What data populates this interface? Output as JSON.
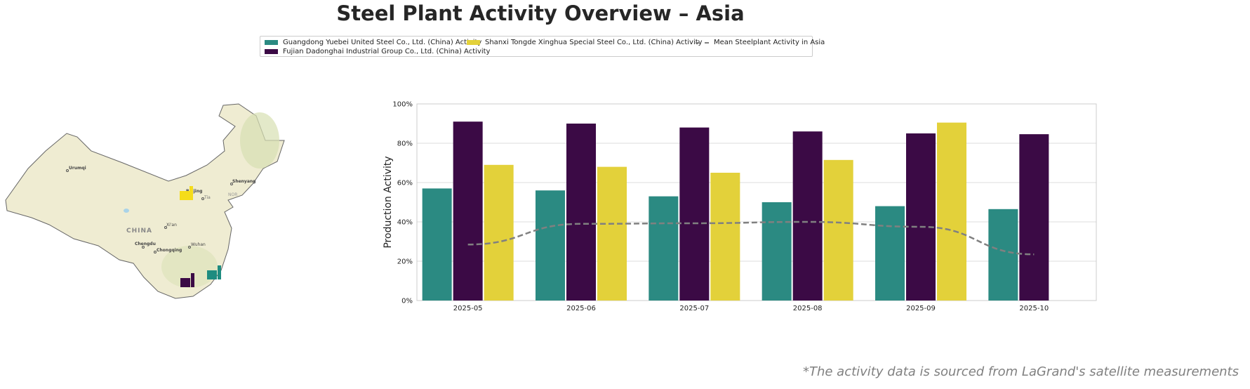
{
  "title": "Steel Plant Activity Overview – Asia",
  "footnote": "*The activity data is sourced from LaGrand's satellite measurements",
  "map": {
    "country_label": "CHINA",
    "cities": [
      "Urumqi",
      "Beijing",
      "Shenyang",
      "Xi'an",
      "Chengdu",
      "Chongqing",
      "Wuhan"
    ],
    "partial_labels": [
      "Tia",
      "NOR"
    ]
  },
  "colors": {
    "guangdong": "#2b8a82",
    "fujian": "#3b0a45",
    "shanxi": "#e3d13a",
    "mean": "#808080"
  },
  "chart_data": {
    "type": "bar",
    "ylabel": "Production Activity",
    "xlabel": "",
    "ylim": [
      0,
      100
    ],
    "yticks": [
      "0%",
      "20%",
      "40%",
      "60%",
      "80%",
      "100%"
    ],
    "grid": true,
    "legend_placement": "top-center",
    "categories": [
      "2025-05",
      "2025-06",
      "2025-07",
      "2025-08",
      "2025-09",
      "2025-10"
    ],
    "series": [
      {
        "name": "Guangdong Yuebei United Steel Co., Ltd. (China) Activity",
        "color": "#2b8a82",
        "values": [
          57,
          56,
          53,
          50,
          48,
          46.5
        ]
      },
      {
        "name": "Fujian Dadonghai Industrial Group Co., Ltd. (China) Activity",
        "color": "#3b0a45",
        "values": [
          91,
          90,
          88,
          86,
          85,
          84.6
        ]
      },
      {
        "name": "Shanxi Tongde Xinghua Special Steel Co., Ltd. (China) Activity",
        "color": "#e3d13a",
        "values": [
          69,
          68,
          65,
          71.5,
          90.5,
          null
        ]
      }
    ],
    "line_series": {
      "name": "Mean Steelplant Activity in Asia",
      "color": "#808080",
      "style": "dashed",
      "values": [
        28.5,
        39,
        39.3,
        40,
        37.5,
        23.5
      ]
    }
  }
}
